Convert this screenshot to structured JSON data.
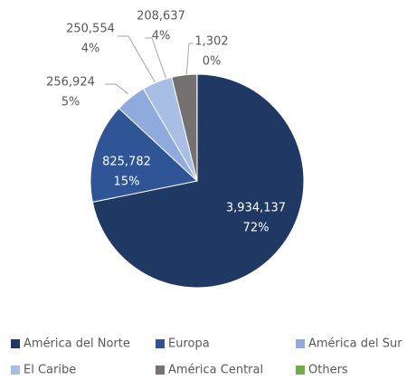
{
  "chart_data": {
    "type": "pie",
    "categories": [
      "América del Norte",
      "Europa",
      "América del Sur",
      "El Caribe",
      "América Central",
      "Others"
    ],
    "values": [
      3934137,
      825782,
      256924,
      250554,
      208637,
      1302
    ],
    "value_labels": [
      "3,934,137",
      "825,782",
      "256,924",
      "250,554",
      "208,637",
      "1,302"
    ],
    "percent_labels": [
      "72%",
      "15%",
      "5%",
      "4%",
      "4%",
      "0%"
    ],
    "colors": [
      "#203864",
      "#2f5597",
      "#8faadc",
      "#a9bee4",
      "#767171",
      "#70ad47"
    ],
    "legend": "bottom"
  }
}
